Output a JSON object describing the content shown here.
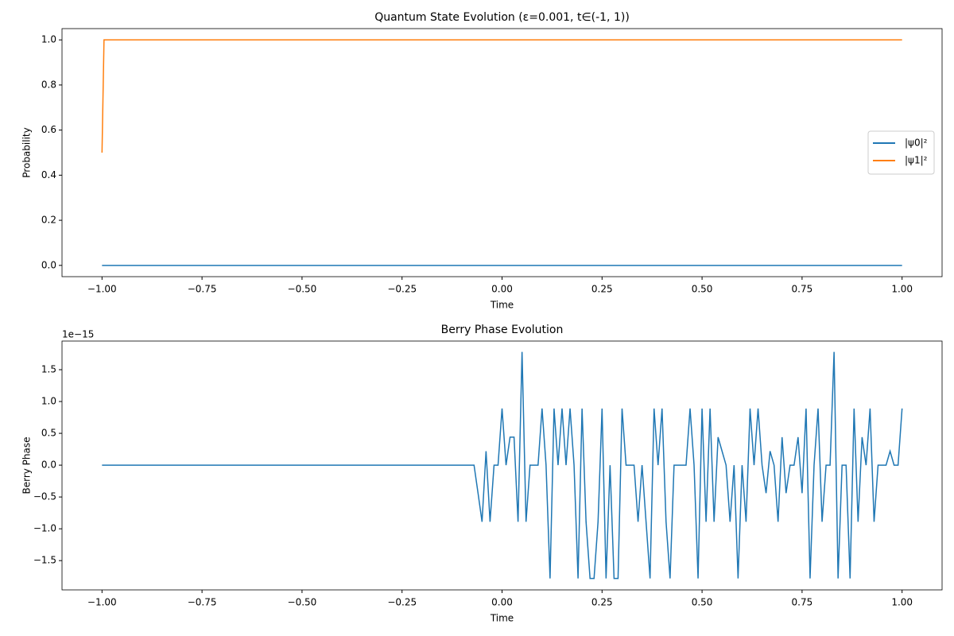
{
  "chart_data": [
    {
      "type": "line",
      "title": "Quantum State Evolution (ε=0.001, t∈(-1, 1))",
      "xlabel": "Time",
      "ylabel": "Probability",
      "x": [
        -1,
        -0.995,
        1
      ],
      "series": [
        {
          "name": "|ψ0|²",
          "color": "#1f77b4",
          "values": [
            0,
            0,
            0
          ]
        },
        {
          "name": "|ψ1|²",
          "color": "#ff7f0e",
          "values": [
            0.5,
            1.0,
            1.0
          ]
        }
      ],
      "xlim": [
        -1.1,
        1.1
      ],
      "xticks": [
        {
          "value": -1,
          "label": "−1.00"
        },
        {
          "value": -0.75,
          "label": "−0.75"
        },
        {
          "value": -0.5,
          "label": "−0.50"
        },
        {
          "value": -0.25,
          "label": "−0.25"
        },
        {
          "value": 0,
          "label": "0.00"
        },
        {
          "value": 0.25,
          "label": "0.25"
        },
        {
          "value": 0.5,
          "label": "0.50"
        },
        {
          "value": 0.75,
          "label": "0.75"
        },
        {
          "value": 1,
          "label": "1.00"
        }
      ],
      "ylim": [
        -0.05,
        1.05
      ],
      "yticks": [
        {
          "value": 0,
          "label": "0.0"
        },
        0.2,
        0.4,
        0.6,
        0.8,
        {
          "value": 1,
          "label": "1.0"
        }
      ],
      "legend": "center right"
    },
    {
      "type": "line",
      "title": "Berry Phase Evolution",
      "xlabel": "Time",
      "ylabel": "Berry Phase",
      "offset_label": "1e−15",
      "x": [
        -1,
        -0.07,
        -0.06,
        -0.05,
        -0.04,
        -0.03,
        -0.02,
        -0.01,
        0,
        0.01,
        0.02,
        0.03,
        0.04,
        0.05,
        0.06,
        0.07,
        0.08,
        0.09,
        0.1,
        0.11,
        0.12,
        0.13,
        0.14,
        0.15,
        0.16,
        0.17,
        0.18,
        0.19,
        0.2,
        0.21,
        0.22,
        0.23,
        0.24,
        0.25,
        0.26,
        0.27,
        0.28,
        0.29,
        0.3,
        0.31,
        0.32,
        0.33,
        0.34,
        0.35,
        0.36,
        0.37,
        0.38,
        0.39,
        0.4,
        0.41,
        0.42,
        0.43,
        0.44,
        0.45,
        0.46,
        0.47,
        0.48,
        0.49,
        0.5,
        0.51,
        0.52,
        0.53,
        0.54,
        0.55,
        0.56,
        0.57,
        0.58,
        0.59,
        0.6,
        0.61,
        0.62,
        0.63,
        0.64,
        0.65,
        0.66,
        0.67,
        0.68,
        0.69,
        0.7,
        0.71,
        0.72,
        0.73,
        0.74,
        0.75,
        0.76,
        0.77,
        0.78,
        0.79,
        0.8,
        0.81,
        0.82,
        0.83,
        0.84,
        0.85,
        0.86,
        0.87,
        0.88,
        0.89,
        0.9,
        0.91,
        0.92,
        0.93,
        0.94,
        0.95,
        0.96,
        0.97,
        0.98,
        0.99,
        1
      ],
      "series": [
        {
          "color": "#1f77b4",
          "values": [
            0,
            0,
            -0.44,
            -0.89,
            0.22,
            -0.89,
            0,
            0,
            0.89,
            0,
            0.44,
            0.44,
            -0.89,
            1.78,
            -0.89,
            0,
            0,
            0,
            0.89,
            0,
            -1.78,
            0.89,
            0,
            0.89,
            0,
            0.89,
            0,
            -1.78,
            0.89,
            -0.89,
            -1.78,
            -1.78,
            -0.89,
            0.89,
            -1.78,
            0,
            -1.78,
            -1.78,
            0.89,
            0,
            0,
            0,
            -0.89,
            0,
            -0.89,
            -1.78,
            0.89,
            0,
            0.89,
            -0.89,
            -1.78,
            0,
            0,
            0,
            0,
            0.89,
            0,
            -1.78,
            0.89,
            -0.89,
            0.89,
            -0.89,
            0.44,
            0.22,
            0,
            -0.89,
            0,
            -1.78,
            0,
            -0.89,
            0.89,
            0,
            0.89,
            0,
            -0.44,
            0.22,
            0,
            -0.89,
            0.44,
            -0.44,
            0,
            0,
            0.44,
            -0.44,
            0.89,
            -1.78,
            0,
            0.89,
            -0.89,
            0,
            0,
            1.78,
            -1.78,
            0,
            0,
            -1.78,
            0.89,
            -0.89,
            0.44,
            0,
            0.89,
            -0.89,
            0,
            0,
            0,
            0.22,
            0,
            0,
            0.89
          ]
        }
      ],
      "xlim": [
        -1.1,
        1.1
      ],
      "xticks": [
        {
          "value": -1,
          "label": "−1.00"
        },
        {
          "value": -0.75,
          "label": "−0.75"
        },
        {
          "value": -0.5,
          "label": "−0.50"
        },
        {
          "value": -0.25,
          "label": "−0.25"
        },
        {
          "value": 0,
          "label": "0.00"
        },
        {
          "value": 0.25,
          "label": "0.25"
        },
        {
          "value": 0.5,
          "label": "0.50"
        },
        {
          "value": 0.75,
          "label": "0.75"
        },
        {
          "value": 1,
          "label": "1.00"
        }
      ],
      "ylim": [
        -1.96,
        1.95
      ],
      "yticks": [
        {
          "value": -1.5,
          "label": "−1.5"
        },
        {
          "value": -1,
          "label": "−1.0"
        },
        {
          "value": -0.5,
          "label": "−0.5"
        },
        {
          "value": 0,
          "label": "0.0"
        },
        0.5,
        {
          "value": 1,
          "label": "1.0"
        },
        1.5
      ]
    }
  ]
}
